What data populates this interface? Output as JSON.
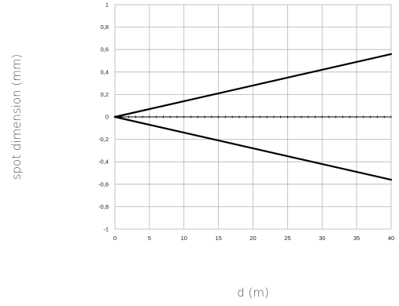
{
  "chart_data": {
    "type": "line",
    "xlabel": "d (m)",
    "ylabel": "spot dimension (mm)",
    "xlim": [
      0,
      40
    ],
    "ylim": [
      -1,
      1
    ],
    "x_ticks": [
      "0",
      "5",
      "10",
      "15",
      "20",
      "25",
      "30",
      "35",
      "40"
    ],
    "y_ticks": [
      "1",
      "0,8",
      "0,6",
      "0,4",
      "0,2",
      "0",
      "-0,2",
      "-0,4",
      "-0,6",
      "-0,8",
      "-1"
    ],
    "grid": true,
    "series": [
      {
        "x": [
          0,
          40
        ],
        "y": [
          0,
          0.56
        ]
      },
      {
        "x": [
          0,
          40
        ],
        "y": [
          0,
          -0.56
        ]
      }
    ]
  }
}
